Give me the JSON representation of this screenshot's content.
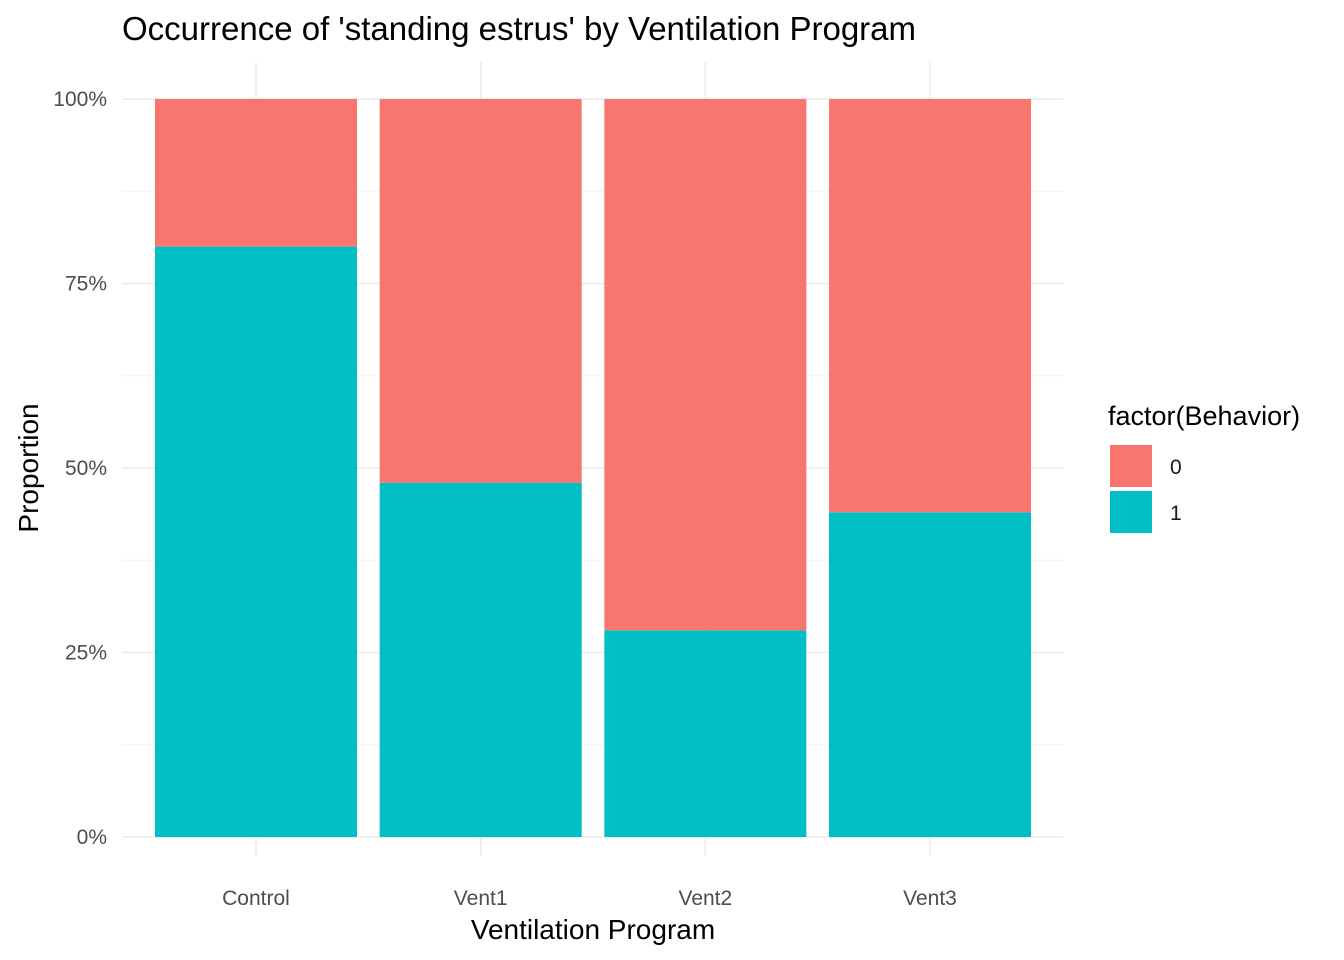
{
  "chart_data": {
    "type": "bar",
    "stacked": true,
    "title": "Occurrence of 'standing estrus' by Ventilation Program",
    "xlabel": "Ventilation Program",
    "ylabel": "Proportion",
    "categories": [
      "Control",
      "Vent1",
      "Vent2",
      "Vent3"
    ],
    "ylim": [
      0,
      1
    ],
    "y_ticks": [
      0,
      0.25,
      0.5,
      0.75,
      1
    ],
    "y_tick_labels": [
      "0%",
      "25%",
      "50%",
      "75%",
      "100%"
    ],
    "grid": true,
    "legend": {
      "title": "factor(Behavior)",
      "position": "right"
    },
    "series": [
      {
        "name": "0",
        "color": "#F8766D",
        "values": [
          0.2,
          0.52,
          0.72,
          0.56
        ]
      },
      {
        "name": "1",
        "color": "#00BFC4",
        "values": [
          0.8,
          0.48,
          0.28,
          0.44
        ]
      }
    ]
  }
}
